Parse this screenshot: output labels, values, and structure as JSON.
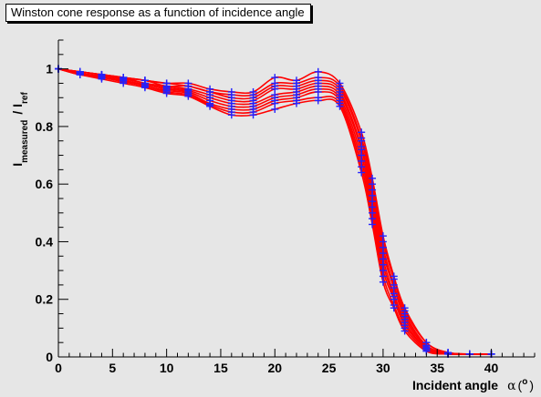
{
  "chart_data": {
    "type": "line",
    "title": "Winston cone response as a function of incidence angle",
    "xlabel": "Incident angle",
    "xlabel_symbol": "α",
    "xlabel_unit_open": "(",
    "xlabel_unit": "o",
    "xlabel_unit_close": ")",
    "ylabel_main": "I",
    "ylabel_sub1": "measured",
    "ylabel_sep": "/ I",
    "ylabel_sub2": "ref",
    "xlim": [
      0,
      44
    ],
    "ylim": [
      0,
      1.1
    ],
    "x_ticks": [
      0,
      5,
      10,
      15,
      20,
      25,
      30,
      35,
      40
    ],
    "y_ticks": [
      0,
      0.2,
      0.4,
      0.6,
      0.8,
      1
    ],
    "x_tick_labels": [
      "0",
      "5",
      "10",
      "15",
      "20",
      "25",
      "30",
      "35",
      "40"
    ],
    "y_tick_labels": [
      "0",
      "0.2",
      "0.4",
      "0.6",
      "0.8",
      "1"
    ],
    "grid": false,
    "line_color": "#ff0000",
    "marker_color": "#2222ff",
    "background_color": "#e6e6e6",
    "x": [
      0,
      2,
      4,
      6,
      8,
      10,
      12,
      14,
      16,
      18,
      20,
      22,
      24,
      26,
      28,
      29,
      30,
      31,
      32,
      34,
      36,
      38,
      40
    ],
    "series": [
      {
        "values": [
          1.0,
          0.99,
          0.98,
          0.97,
          0.96,
          0.95,
          0.95,
          0.93,
          0.92,
          0.92,
          0.97,
          0.96,
          0.99,
          0.95,
          0.78,
          0.62,
          0.42,
          0.28,
          0.17,
          0.05,
          0.015,
          0.01,
          0.01
        ]
      },
      {
        "values": [
          1.0,
          0.99,
          0.98,
          0.97,
          0.96,
          0.95,
          0.94,
          0.92,
          0.91,
          0.91,
          0.95,
          0.95,
          0.97,
          0.94,
          0.76,
          0.6,
          0.4,
          0.27,
          0.16,
          0.05,
          0.015,
          0.01,
          0.01
        ]
      },
      {
        "values": [
          1.0,
          0.99,
          0.98,
          0.97,
          0.96,
          0.94,
          0.94,
          0.92,
          0.9,
          0.9,
          0.94,
          0.94,
          0.96,
          0.93,
          0.75,
          0.58,
          0.38,
          0.25,
          0.15,
          0.04,
          0.015,
          0.01,
          0.01
        ]
      },
      {
        "values": [
          1.0,
          0.99,
          0.98,
          0.97,
          0.95,
          0.94,
          0.93,
          0.91,
          0.89,
          0.89,
          0.93,
          0.93,
          0.95,
          0.92,
          0.73,
          0.56,
          0.36,
          0.24,
          0.14,
          0.04,
          0.012,
          0.01,
          0.01
        ]
      },
      {
        "values": [
          1.0,
          0.985,
          0.975,
          0.965,
          0.95,
          0.935,
          0.925,
          0.9,
          0.88,
          0.88,
          0.91,
          0.92,
          0.94,
          0.91,
          0.72,
          0.54,
          0.34,
          0.22,
          0.13,
          0.035,
          0.012,
          0.01,
          0.01
        ]
      },
      {
        "values": [
          1.0,
          0.985,
          0.97,
          0.96,
          0.945,
          0.93,
          0.92,
          0.89,
          0.87,
          0.87,
          0.9,
          0.91,
          0.93,
          0.9,
          0.7,
          0.52,
          0.32,
          0.21,
          0.12,
          0.03,
          0.012,
          0.01,
          0.01
        ]
      },
      {
        "values": [
          1.0,
          0.98,
          0.97,
          0.96,
          0.94,
          0.925,
          0.915,
          0.88,
          0.86,
          0.86,
          0.89,
          0.9,
          0.92,
          0.89,
          0.68,
          0.5,
          0.3,
          0.2,
          0.11,
          0.03,
          0.01,
          0.01,
          0.01
        ]
      },
      {
        "values": [
          1.0,
          0.98,
          0.97,
          0.955,
          0.94,
          0.92,
          0.91,
          0.875,
          0.85,
          0.85,
          0.88,
          0.89,
          0.9,
          0.88,
          0.66,
          0.48,
          0.28,
          0.18,
          0.1,
          0.025,
          0.01,
          0.01,
          0.01
        ]
      },
      {
        "values": [
          1.0,
          0.98,
          0.965,
          0.95,
          0.935,
          0.915,
          0.905,
          0.87,
          0.84,
          0.84,
          0.86,
          0.88,
          0.89,
          0.87,
          0.64,
          0.46,
          0.26,
          0.17,
          0.09,
          0.02,
          0.01,
          0.01,
          0.01
        ]
      }
    ]
  }
}
